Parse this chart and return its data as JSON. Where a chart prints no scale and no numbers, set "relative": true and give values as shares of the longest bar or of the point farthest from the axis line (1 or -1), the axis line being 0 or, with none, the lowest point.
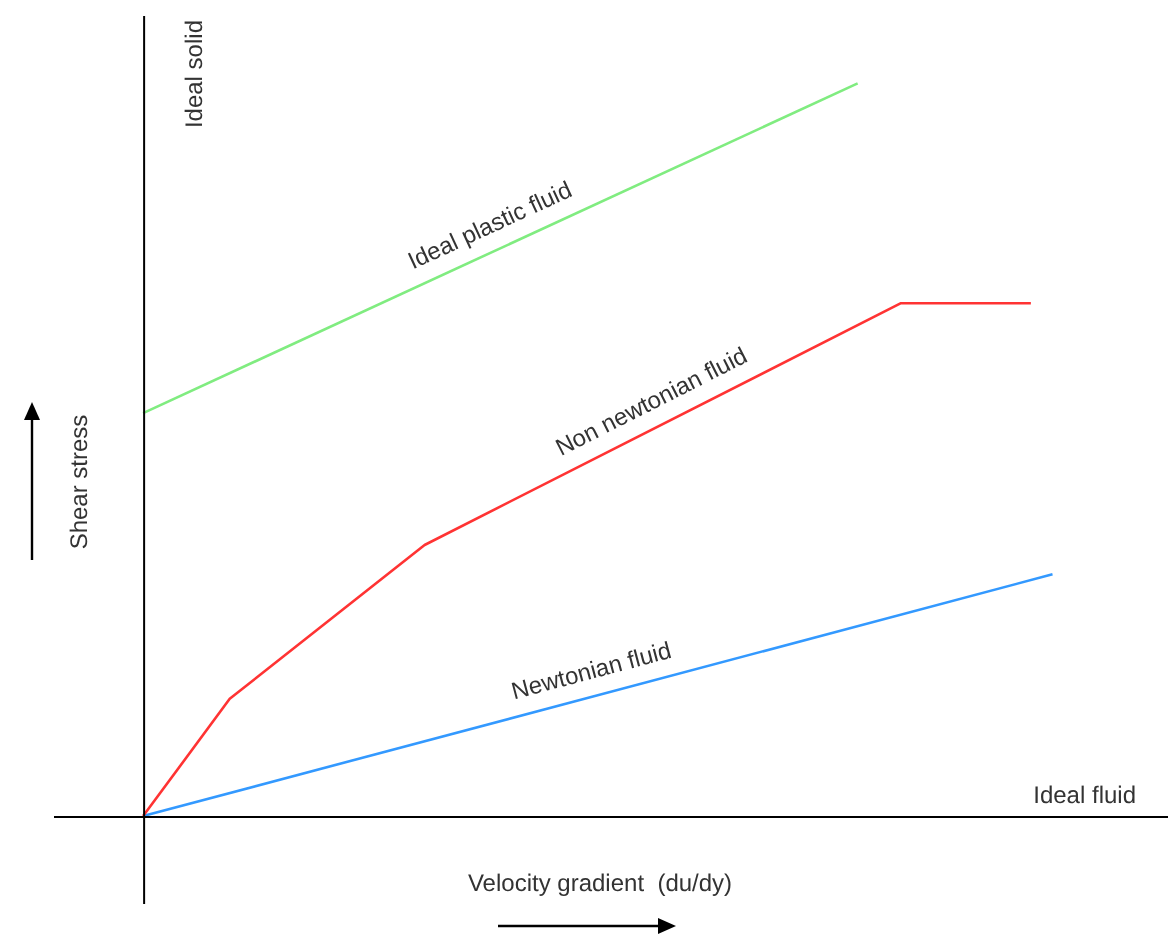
{
  "chart_data": {
    "type": "line",
    "relative": true,
    "xlabel": "Velocity gradient  (du/dy)",
    "ylabel": "Shear stress",
    "legend": false,
    "marker": "none",
    "line_style": "solid",
    "annotations": [
      "Ideal solid",
      "Ideal fluid"
    ],
    "categories": [
      null,
      null,
      null,
      null,
      null,
      null,
      null,
      null,
      null,
      null,
      null,
      null,
      null,
      null,
      null,
      null,
      null,
      null,
      null,
      null,
      null,
      null,
      null,
      null,
      null,
      null,
      null,
      null,
      null,
      null,
      null,
      null,
      null,
      null,
      null,
      null,
      null,
      null,
      null,
      null,
      null,
      null,
      null
    ],
    "series": [
      {
        "name": "Ideal plastic fluid",
        "color": "#80ec80",
        "values": [
          0.55,
          null,
          null,
          null,
          null,
          null,
          null,
          null,
          null,
          null,
          null,
          null,
          null,
          null,
          null,
          null,
          null,
          null,
          null,
          null,
          null,
          null,
          null,
          null,
          null,
          null,
          null,
          null,
          null,
          null,
          null,
          null,
          null,
          1,
          null,
          null,
          null,
          null,
          null,
          null,
          null,
          null,
          null
        ]
      },
      {
        "name": "Non newtonian fluid",
        "color": "#ff3333",
        "values": [
          0,
          null,
          null,
          null,
          0.16,
          null,
          null,
          null,
          null,
          null,
          null,
          null,
          null,
          0.37,
          null,
          null,
          null,
          null,
          null,
          null,
          null,
          null,
          null,
          null,
          null,
          null,
          null,
          null,
          null,
          null,
          null,
          null,
          null,
          null,
          null,
          0.7,
          null,
          null,
          null,
          null,
          null,
          0.7,
          null
        ]
      },
      {
        "name": "Newtonian fluid",
        "color": "#3399ff",
        "values": [
          0,
          null,
          null,
          null,
          null,
          null,
          null,
          null,
          null,
          null,
          null,
          null,
          null,
          null,
          null,
          null,
          null,
          null,
          null,
          null,
          null,
          null,
          null,
          null,
          null,
          null,
          null,
          null,
          null,
          null,
          null,
          null,
          null,
          null,
          null,
          null,
          null,
          null,
          null,
          null,
          null,
          null,
          0.33
        ]
      }
    ]
  }
}
